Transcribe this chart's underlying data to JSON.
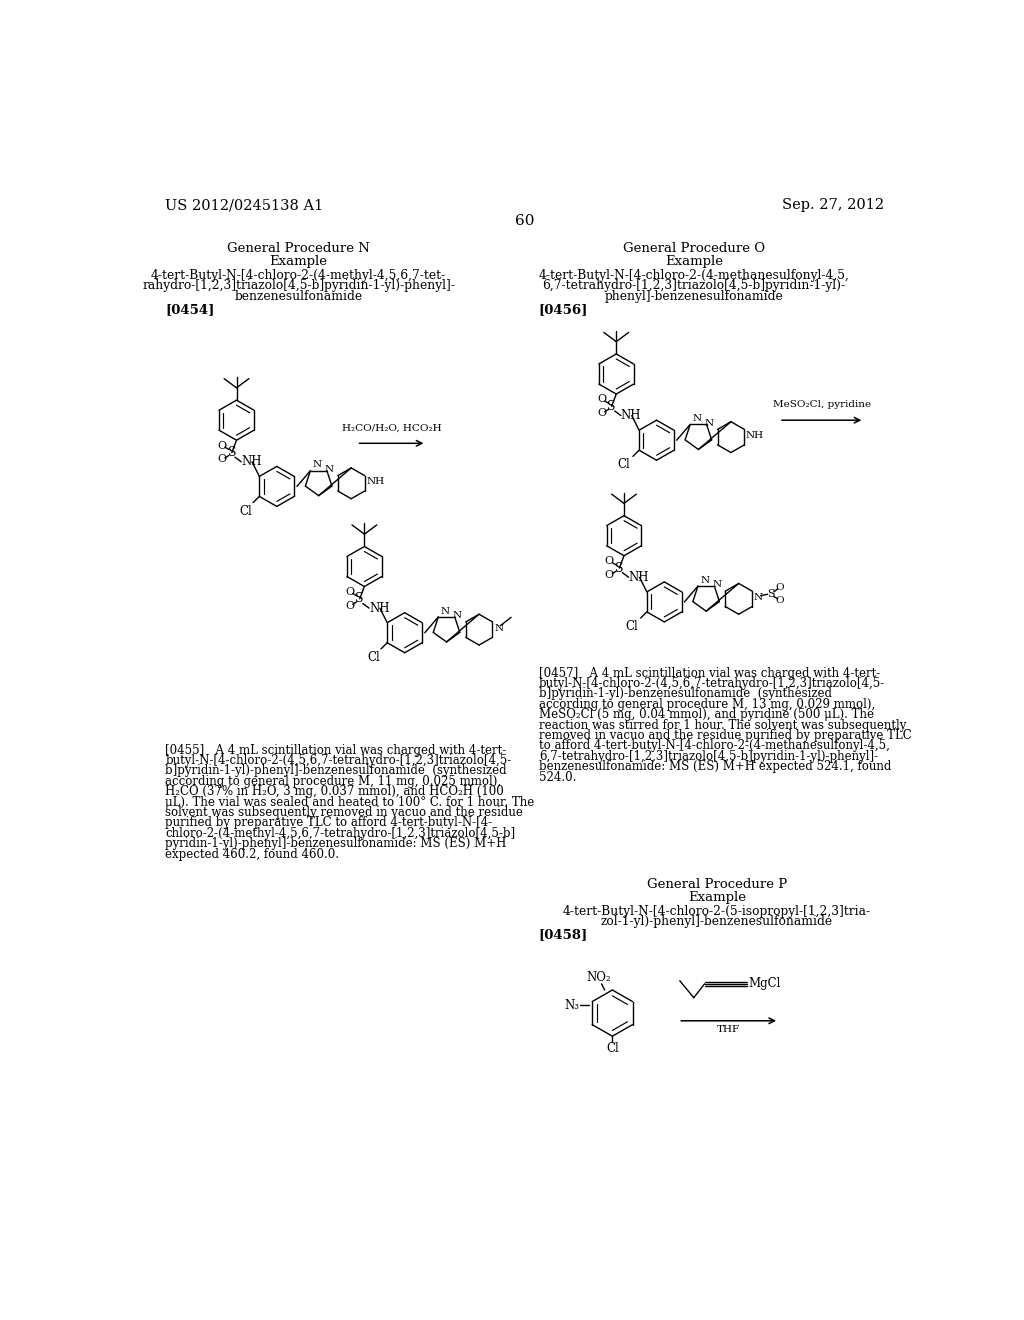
{
  "page_number": "60",
  "header_left": "US 2012/0245138 A1",
  "header_right": "Sep. 27, 2012",
  "background_color": "#ffffff",
  "text_color": "#000000",
  "reaction_label_1": "H₂CO/H₂O, HCO₂H",
  "reaction_label_2": "MeSO₂Cl, pyridine",
  "paragraph_0455_lines": [
    "[0455]   A 4 mL scintillation vial was charged with 4-tert-",
    "butyl-N-[4-chloro-2-(4,5,6,7-tetrahydro-[1,2,3]triazolo[4,5-",
    "b]pyridin-1-yl)-phenyl]-benzenesulfonamide  (synthesized",
    "according to general procedure M, 11 mg, 0.025 mmol),",
    "H₂CO (37% in H₂O, 3 mg, 0.037 mmol), and HCO₂H (100",
    "μL). The vial was sealed and heated to 100° C. for 1 hour. The",
    "solvent was subsequently removed in vacuo and the residue",
    "purified by preparative TLC to afford 4-tert-butyl-N-[4-",
    "chloro-2-(4-methyl-4,5,6,7-tetrahydro-[1,2,3]triazolo[4,5-b]",
    "pyridin-1-yl)-phenyl]-benzenesulfonamide: MS (ES) M+H",
    "expected 460.2, found 460.0."
  ],
  "paragraph_0457_lines": [
    "[0457]   A 4 mL scintillation vial was charged with 4-tert-",
    "butyl-N-[4-chloro-2-(4,5,6,7-tetrahydro-[1,2,3]triazolo[4,5-",
    "b]pyridin-1-yl)-benzenesulfonamide  (synthesized",
    "according to general procedure M, 13 mg, 0.029 mmol),",
    "MeSO₂Cl (5 mg, 0.04 mmol), and pyridine (500 μL). The",
    "reaction was stirred for 1 hour. The solvent was subsequently",
    "removed in vacuo and the residue purified by preparative TLC",
    "to afford 4-tert-butyl-N-[4-chloro-2-(4-methanesulfonyl-4,5,",
    "6,7-tetrahydro-[1,2,3]triazolo[4,5-b]pyridin-1-yl)-phenyl]-",
    "benzenesulfonamide: MS (ES) M+H expected 524.1, found",
    "524.0."
  ]
}
